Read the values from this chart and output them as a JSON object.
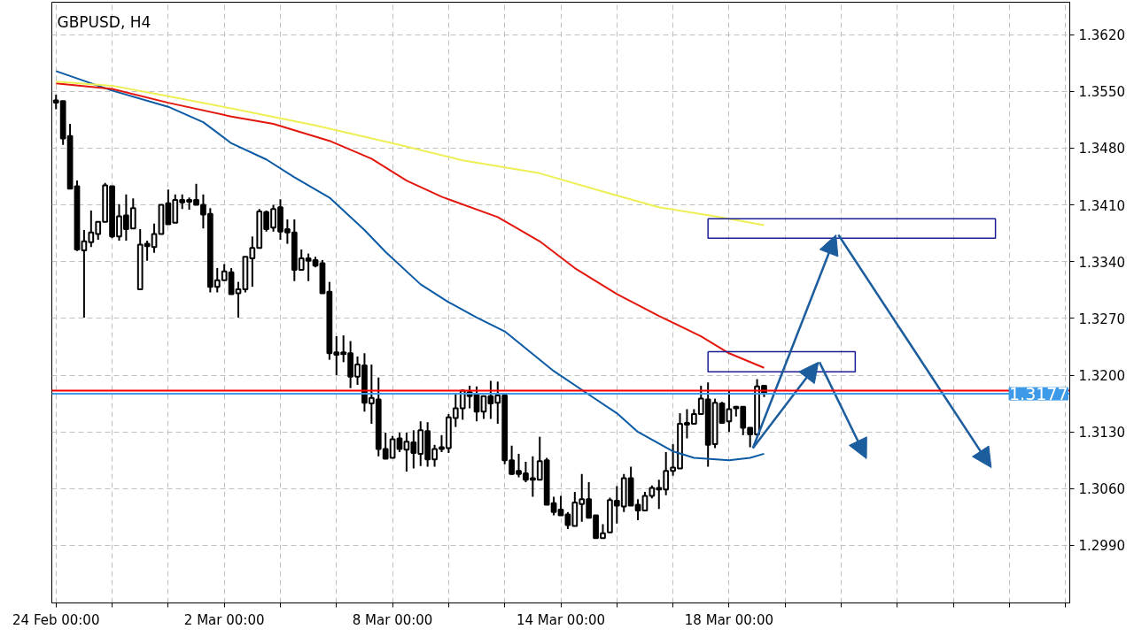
{
  "chart_data": {
    "type": "candlestick",
    "title": "GBPUSD, H4",
    "color": "#000000",
    "categories": [
      "24 Feb 00:00",
      null,
      null,
      null,
      null,
      null,
      null,
      null,
      null,
      null,
      null,
      null,
      null,
      null,
      null,
      null,
      null,
      null,
      null,
      null,
      null,
      null,
      null,
      null,
      "2 Mar 00:00",
      null,
      null,
      null,
      null,
      null,
      null,
      null,
      null,
      null,
      null,
      null,
      null,
      null,
      null,
      null,
      null,
      null,
      null,
      null,
      null,
      null,
      null,
      null,
      "8 Mar 00:00",
      null,
      null,
      null,
      null,
      null,
      null,
      null,
      null,
      null,
      null,
      null,
      null,
      null,
      null,
      null,
      null,
      null,
      null,
      null,
      null,
      null,
      null,
      null,
      "14 Mar 00:00",
      null,
      null,
      null,
      null,
      null,
      null,
      null,
      null,
      null,
      null,
      null,
      null,
      null,
      null,
      null,
      null,
      null,
      null,
      null,
      null,
      null,
      null,
      null,
      "18 Mar 00:00",
      null,
      null,
      null,
      null,
      null,
      null,
      null,
      null,
      null,
      null,
      null,
      null,
      null,
      null,
      null,
      null,
      null,
      null,
      null,
      null,
      null,
      null,
      null,
      null,
      null,
      null,
      null,
      null,
      null,
      null,
      null,
      null,
      null,
      null,
      null,
      null,
      null,
      null,
      null,
      null,
      null,
      null,
      null,
      null,
      null,
      null,
      null,
      null
    ],
    "ohlc": [
      [
        1.3539,
        1.3546,
        1.3528,
        1.3536
      ],
      [
        1.3538,
        1.3538,
        1.3484,
        1.3492
      ],
      [
        1.3495,
        1.351,
        1.343,
        1.343
      ],
      [
        1.3433,
        1.344,
        1.3353,
        1.3355
      ],
      [
        1.3354,
        1.3379,
        1.3271,
        1.3365
      ],
      [
        1.3364,
        1.3403,
        1.3358,
        1.3376
      ],
      [
        1.3374,
        1.3389,
        1.3367,
        1.3389
      ],
      [
        1.3389,
        1.3437,
        1.3389,
        1.3434
      ],
      [
        1.3433,
        1.3433,
        1.3369,
        1.3371
      ],
      [
        1.3371,
        1.3411,
        1.3366,
        1.3396
      ],
      [
        1.3397,
        1.3423,
        1.3366,
        1.338
      ],
      [
        1.3381,
        1.3418,
        1.3381,
        1.3406
      ],
      [
        1.3306,
        1.338,
        1.3306,
        1.3361
      ],
      [
        1.3362,
        1.3366,
        1.3341,
        1.3359
      ],
      [
        1.3358,
        1.3387,
        1.3351,
        1.3374
      ],
      [
        1.3374,
        1.341,
        1.3374,
        1.341
      ],
      [
        1.3412,
        1.3429,
        1.3386,
        1.3386
      ],
      [
        1.3388,
        1.3423,
        1.3388,
        1.3416
      ],
      [
        1.3416,
        1.3423,
        1.3405,
        1.3413
      ],
      [
        1.3416,
        1.3419,
        1.3404,
        1.3414
      ],
      [
        1.3416,
        1.3436,
        1.341,
        1.341
      ],
      [
        1.341,
        1.3423,
        1.3381,
        1.3398
      ],
      [
        1.3399,
        1.3406,
        1.3302,
        1.3309
      ],
      [
        1.3309,
        1.3332,
        1.3302,
        1.3317
      ],
      [
        1.3317,
        1.3337,
        1.3317,
        1.3328
      ],
      [
        1.3327,
        1.3332,
        1.33,
        1.33
      ],
      [
        1.3301,
        1.3315,
        1.3271,
        1.3306
      ],
      [
        1.3306,
        1.3346,
        1.3302,
        1.3346
      ],
      [
        1.3344,
        1.3371,
        1.3309,
        1.3357
      ],
      [
        1.3357,
        1.3405,
        1.3357,
        1.3402
      ],
      [
        1.3401,
        1.3403,
        1.3377,
        1.338
      ],
      [
        1.3382,
        1.341,
        1.3377,
        1.3405
      ],
      [
        1.3407,
        1.3417,
        1.3367,
        1.3377
      ],
      [
        1.338,
        1.3392,
        1.3362,
        1.3376
      ],
      [
        1.3376,
        1.3392,
        1.3316,
        1.333
      ],
      [
        1.333,
        1.3355,
        1.333,
        1.3344
      ],
      [
        1.3344,
        1.335,
        1.3316,
        1.3341
      ],
      [
        1.3342,
        1.3346,
        1.3333,
        1.3335
      ],
      [
        1.3338,
        1.3342,
        1.3301,
        1.3301
      ],
      [
        1.3303,
        1.3315,
        1.3219,
        1.3227
      ],
      [
        1.3228,
        1.3248,
        1.32,
        1.3225
      ],
      [
        1.3228,
        1.3249,
        1.3216,
        1.3226
      ],
      [
        1.3227,
        1.3242,
        1.3184,
        1.3198
      ],
      [
        1.3198,
        1.3223,
        1.3188,
        1.3213
      ],
      [
        1.3212,
        1.3227,
        1.3155,
        1.3166
      ],
      [
        1.3165,
        1.3213,
        1.314,
        1.3172
      ],
      [
        1.317,
        1.3197,
        1.31,
        1.3109
      ],
      [
        1.3109,
        1.3129,
        1.3097,
        1.3097
      ],
      [
        1.3098,
        1.3125,
        1.3098,
        1.3121
      ],
      [
        1.3122,
        1.3129,
        1.3105,
        1.3109
      ],
      [
        1.3108,
        1.3129,
        1.3081,
        1.3118
      ],
      [
        1.3117,
        1.3132,
        1.3085,
        1.3104
      ],
      [
        1.3103,
        1.3143,
        1.3088,
        1.3132
      ],
      [
        1.3131,
        1.3142,
        1.3087,
        1.3096
      ],
      [
        1.3096,
        1.3114,
        1.3087,
        1.3109
      ],
      [
        1.3111,
        1.3126,
        1.3105,
        1.3109
      ],
      [
        1.311,
        1.3152,
        1.3104,
        1.3148
      ],
      [
        1.3147,
        1.3178,
        1.3136,
        1.3159
      ],
      [
        1.3159,
        1.3182,
        1.3145,
        1.3181
      ],
      [
        1.3179,
        1.3187,
        1.3159,
        1.3174
      ],
      [
        1.3176,
        1.3186,
        1.3143,
        1.3155
      ],
      [
        1.3155,
        1.3174,
        1.3146,
        1.3174
      ],
      [
        1.3174,
        1.3193,
        1.3146,
        1.3165
      ],
      [
        1.3166,
        1.3192,
        1.314,
        1.3175
      ],
      [
        1.3175,
        1.3176,
        1.309,
        1.3095
      ],
      [
        1.3095,
        1.3113,
        1.3077,
        1.3078
      ],
      [
        1.3082,
        1.3103,
        1.3074,
        1.3078
      ],
      [
        1.3079,
        1.3093,
        1.3068,
        1.3071
      ],
      [
        1.3073,
        1.31,
        1.305,
        1.3071
      ],
      [
        1.3071,
        1.3124,
        1.3071,
        1.3094
      ],
      [
        1.3095,
        1.3098,
        1.304,
        1.304
      ],
      [
        1.3042,
        1.305,
        1.3027,
        1.3031
      ],
      [
        1.3034,
        1.3051,
        1.3027,
        1.3027
      ],
      [
        1.3028,
        1.3031,
        1.301,
        1.3015
      ],
      [
        1.3014,
        1.3056,
        1.3014,
        1.3043
      ],
      [
        1.3041,
        1.3078,
        1.3019,
        1.3047
      ],
      [
        1.3047,
        1.3068,
        1.3024,
        1.3024
      ],
      [
        1.3027,
        1.3027,
        1.2999,
        1.2999
      ],
      [
        1.2999,
        1.3016,
        1.2999,
        1.3005
      ],
      [
        1.3006,
        1.3049,
        1.3006,
        1.3046
      ],
      [
        1.3045,
        1.3063,
        1.3017,
        1.3039
      ],
      [
        1.3038,
        1.3078,
        1.3031,
        1.3073
      ],
      [
        1.3073,
        1.3087,
        1.3039,
        1.3039
      ],
      [
        1.304,
        1.3047,
        1.3021,
        1.3033
      ],
      [
        1.3033,
        1.3056,
        1.3033,
        1.3051
      ],
      [
        1.3051,
        1.3064,
        1.3048,
        1.3061
      ],
      [
        1.3061,
        1.3071,
        1.3035,
        1.3059
      ],
      [
        1.3059,
        1.3105,
        1.3052,
        1.3082
      ],
      [
        1.3082,
        1.3115,
        1.3076,
        1.3086
      ],
      [
        1.3085,
        1.3153,
        1.3085,
        1.314
      ],
      [
        1.3139,
        1.3158,
        1.3122,
        1.3141
      ],
      [
        1.314,
        1.3158,
        1.314,
        1.3152
      ],
      [
        1.3152,
        1.3187,
        1.3152,
        1.3171
      ],
      [
        1.317,
        1.3191,
        1.3087,
        1.3114
      ],
      [
        1.3115,
        1.3171,
        1.311,
        1.3166
      ],
      [
        1.3165,
        1.3167,
        1.3141,
        1.3141
      ],
      [
        1.3143,
        1.3181,
        1.313,
        1.3158
      ],
      [
        1.3161,
        1.3162,
        1.3149,
        1.3159
      ],
      [
        1.3161,
        1.3161,
        1.3126,
        1.3135
      ],
      [
        1.3135,
        1.3135,
        1.3111,
        1.3127
      ],
      [
        1.3127,
        1.3195,
        1.3125,
        1.3186
      ],
      [
        1.3187,
        1.3187,
        1.3173,
        1.3177
      ],
      null,
      null,
      null,
      null,
      null,
      null,
      null,
      null,
      null,
      null,
      null,
      null,
      null,
      null,
      null,
      null,
      null,
      null,
      null,
      null,
      null,
      null,
      null,
      null,
      null,
      null,
      null,
      null,
      null,
      null,
      null,
      null,
      null,
      null,
      null,
      null,
      null,
      null,
      null,
      null,
      null,
      null,
      null
    ],
    "series": [
      {
        "type": "line",
        "color": "#0b5aa5",
        "values": [
          1.3575,
          null,
          null,
          null,
          null,
          null,
          null,
          null,
          1.3551,
          null,
          null,
          null,
          null,
          null,
          null,
          null,
          1.3531,
          null,
          null,
          null,
          null,
          1.3512,
          null,
          null,
          null,
          1.3486,
          null,
          null,
          null,
          null,
          1.3466,
          null,
          null,
          null,
          1.3444,
          null,
          null,
          null,
          null,
          1.3419,
          null,
          null,
          null,
          null,
          1.3379,
          null,
          null,
          1.3352,
          null,
          null,
          null,
          null,
          1.3312,
          null,
          null,
          null,
          1.329,
          null,
          null,
          null,
          1.3271,
          null,
          null,
          null,
          1.3254,
          null,
          null,
          1.3233,
          null,
          null,
          null,
          1.3205,
          null,
          null,
          null,
          null,
          1.3176,
          null,
          null,
          null,
          1.3153,
          null,
          null,
          1.313,
          null,
          null,
          null,
          null,
          1.3106,
          null,
          null,
          1.3098,
          null,
          null,
          null,
          null,
          1.3095,
          null,
          null,
          1.3098,
          null,
          1.3103,
          null,
          null,
          null,
          null,
          null,
          null,
          null,
          null,
          null,
          null,
          null,
          null,
          null,
          null,
          null,
          null,
          null,
          null,
          null,
          null,
          null,
          null,
          null,
          null,
          null,
          null,
          null,
          null,
          null,
          null,
          null,
          null,
          null,
          null,
          null,
          null,
          null,
          null,
          null,
          null,
          null,
          null,
          null
        ]
      },
      {
        "type": "line",
        "color": "#e3170d",
        "values": [
          1.356,
          null,
          null,
          null,
          null,
          null,
          null,
          null,
          1.3553,
          null,
          null,
          null,
          null,
          null,
          null,
          null,
          1.3536,
          null,
          null,
          null,
          null,
          null,
          null,
          null,
          null,
          1.3519,
          null,
          null,
          null,
          null,
          null,
          1.351,
          null,
          null,
          null,
          null,
          null,
          null,
          null,
          1.3489,
          null,
          null,
          null,
          null,
          null,
          1.3467,
          null,
          null,
          null,
          null,
          1.344,
          null,
          null,
          null,
          null,
          1.342,
          null,
          null,
          null,
          null,
          null,
          null,
          null,
          1.3395,
          null,
          null,
          null,
          null,
          null,
          1.3365,
          null,
          null,
          null,
          null,
          1.3332,
          null,
          null,
          null,
          null,
          null,
          1.33,
          null,
          null,
          null,
          null,
          null,
          1.3273,
          null,
          null,
          null,
          null,
          null,
          1.3248,
          null,
          null,
          null,
          1.3227,
          null,
          null,
          null,
          null,
          1.3209,
          null,
          null,
          null,
          null,
          null,
          null,
          null,
          null,
          null,
          null,
          null,
          null,
          null,
          null,
          null,
          null,
          null,
          null,
          null,
          null,
          null,
          null,
          null,
          null,
          null,
          null,
          null,
          null,
          null,
          null,
          null,
          null,
          null,
          null,
          null,
          null,
          null,
          null,
          null,
          null,
          null,
          null,
          null
        ]
      },
      {
        "type": "line",
        "color": "#eeee55",
        "values": [
          1.3562,
          null,
          null,
          null,
          null,
          null,
          null,
          null,
          1.3557,
          null,
          null,
          null,
          null,
          null,
          null,
          null,
          1.3544,
          null,
          null,
          null,
          null,
          null,
          null,
          null,
          null,
          1.3529,
          null,
          null,
          null,
          null,
          null,
          null,
          null,
          null,
          null,
          null,
          null,
          1.3508,
          null,
          null,
          null,
          null,
          null,
          null,
          null,
          null,
          null,
          null,
          null,
          1.3484,
          null,
          null,
          null,
          null,
          null,
          null,
          null,
          null,
          1.3465,
          null,
          null,
          null,
          null,
          null,
          null,
          null,
          null,
          null,
          null,
          1.3449,
          null,
          null,
          null,
          null,
          null,
          null,
          null,
          null,
          null,
          1.3424,
          null,
          null,
          null,
          null,
          null,
          null,
          1.3407,
          null,
          null,
          null,
          null,
          null,
          null,
          null,
          1.3396,
          null,
          null,
          null,
          null,
          null,
          null,
          1.3385,
          null,
          null,
          null,
          null,
          null,
          null,
          null,
          null,
          null,
          null,
          null,
          null,
          null,
          null,
          null,
          null,
          null,
          null,
          null,
          null,
          null,
          null,
          null,
          null,
          null,
          null,
          null,
          null,
          null,
          null,
          null,
          null,
          null,
          null,
          null,
          null,
          null,
          null,
          null,
          null,
          null,
          null,
          null
        ]
      }
    ],
    "ref_lines": [
      {
        "axis": "y",
        "value": 1.3181,
        "label": null,
        "color": "#ff0000"
      },
      {
        "axis": "y",
        "value": 1.3177,
        "label": "1.3177",
        "color": "#3d9ae8"
      }
    ],
    "ylim": [
      1.2919,
      1.366
    ],
    "yticks": [
      {
        "value": 1.299,
        "label": "1.2990"
      },
      {
        "value": 1.306,
        "label": "1.3060"
      },
      {
        "value": 1.313,
        "label": "1.3130"
      },
      {
        "value": 1.32,
        "label": "1.3200"
      },
      {
        "value": 1.327,
        "label": "1.3270"
      },
      {
        "value": 1.334,
        "label": "1.3340"
      },
      {
        "value": 1.341,
        "label": "1.3410"
      },
      {
        "value": 1.348,
        "label": "1.3480"
      },
      {
        "value": 1.355,
        "label": "1.3550"
      },
      {
        "value": 1.362,
        "label": "1.3620"
      }
    ],
    "grid": true
  }
}
